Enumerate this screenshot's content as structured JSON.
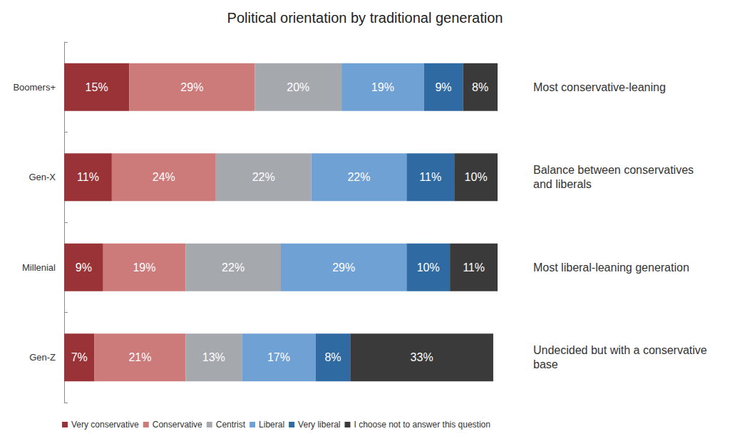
{
  "chart_data": {
    "type": "bar",
    "title": "Political orientation by traditional generation",
    "categories": [
      "Boomers+",
      "Gen-X",
      "Millenial",
      "Gen-Z"
    ],
    "annotations": [
      "Most conservative-leaning",
      "Balance between conservatives and liberals",
      "Most liberal-leaning generation",
      "Undecided but with a conservative base"
    ],
    "series": [
      {
        "name": "Very conservative",
        "color": "#993337",
        "values": [
          15,
          11,
          9,
          7
        ],
        "value_labels": [
          "15%",
          "11%",
          "9%",
          "7%"
        ]
      },
      {
        "name": "Conservative",
        "color": "#cd7a7a",
        "values": [
          29,
          24,
          19,
          21
        ],
        "value_labels": [
          "29%",
          "24%",
          "19%",
          "21%"
        ]
      },
      {
        "name": "Centrist",
        "color": "#a5a8ad",
        "values": [
          20,
          22,
          22,
          13
        ],
        "value_labels": [
          "20%",
          "22%",
          "22%",
          "13%"
        ]
      },
      {
        "name": "Liberal",
        "color": "#6fa1d5",
        "values": [
          19,
          22,
          29,
          17
        ],
        "value_labels": [
          "19%",
          "22%",
          "29%",
          "17%"
        ]
      },
      {
        "name": "Very liberal",
        "color": "#2f6aa3",
        "values": [
          9,
          11,
          10,
          8
        ],
        "value_labels": [
          "9%",
          "11%",
          "10%",
          "8%"
        ]
      },
      {
        "name": "I choose not to answer this question",
        "color": "#3a3a3a",
        "values": [
          8,
          10,
          11,
          33
        ],
        "value_labels": [
          "8%",
          "10%",
          "11%",
          "33%"
        ]
      }
    ],
    "orientation": "horizontal",
    "stacked": true,
    "data_labels": true,
    "legend": "bottom",
    "tick_labels": "y",
    "grid": false
  }
}
